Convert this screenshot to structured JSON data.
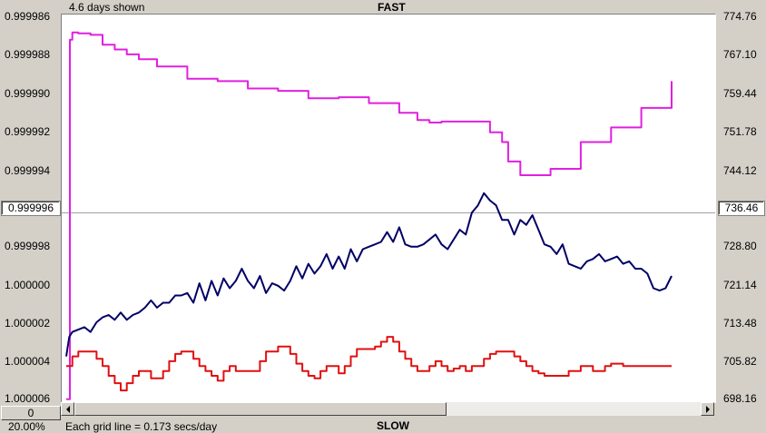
{
  "header": {
    "left_text": "4.6 days shown",
    "center_title": "FAST"
  },
  "footer": {
    "grid_note": "Each grid line = 0.173 secs/day",
    "center_title": "SLOW",
    "zoom": "20.00%",
    "scroll_box": "0"
  },
  "left_axis": {
    "ticks": [
      "0.999986",
      "0.999988",
      "0.999990",
      "0.999992",
      "0.999994",
      "0.999996",
      "0.999998",
      "1.000000",
      "1.000002",
      "1.000004",
      "1.000006"
    ],
    "selected": "0.999996"
  },
  "right_axis": {
    "ticks": [
      "774.76",
      "767.10",
      "759.44",
      "751.78",
      "744.12",
      "736.46",
      "728.80",
      "721.14",
      "713.48",
      "705.82",
      "698.16"
    ],
    "selected": "736.46"
  },
  "colors": {
    "magenta": "#e020e0",
    "navy": "#000066",
    "red": "#e01010",
    "center_line": "#a0a0a0"
  },
  "chart_data": [
    {
      "type": "line",
      "name_axis": "right",
      "ylim": [
        698.16,
        774.76
      ],
      "series": [
        {
          "color": "magenta",
          "x": [
            0,
            0.6,
            1,
            2,
            4,
            6,
            8,
            10,
            12,
            15,
            20,
            25,
            30,
            35,
            40,
            45,
            50,
            55,
            58,
            60,
            62,
            66,
            70,
            72,
            73,
            75,
            80,
            85,
            90,
            95,
            100
          ],
          "values": [
            698.2,
            772.0,
            773.5,
            773.3,
            773.0,
            771.0,
            770.0,
            769.0,
            768.0,
            766.5,
            764.0,
            763.5,
            762.0,
            761.5,
            760.0,
            760.2,
            759.0,
            757.0,
            755.5,
            755.0,
            755.2,
            755.2,
            753.0,
            751.0,
            747.0,
            744.2,
            745.5,
            751.0,
            754.0,
            758.0,
            763.5
          ]
        },
        {
          "color": "navy",
          "x": [
            0,
            0.5,
            1,
            2,
            3,
            4,
            5,
            6,
            7,
            8,
            9,
            10,
            11,
            12,
            13,
            14,
            15,
            16,
            17,
            18,
            19,
            20,
            21,
            22,
            23,
            24,
            25,
            26,
            27,
            28,
            29,
            30,
            31,
            32,
            33,
            34,
            35,
            36,
            37,
            38,
            39,
            40,
            41,
            42,
            43,
            44,
            45,
            46,
            47,
            48,
            49,
            50,
            51,
            52,
            53,
            54,
            55,
            56,
            57,
            58,
            59,
            60,
            61,
            62,
            63,
            64,
            65,
            66,
            67,
            68,
            69,
            70,
            71,
            72,
            73,
            74,
            75,
            76,
            77,
            78,
            79,
            80,
            81,
            82,
            83,
            84,
            85,
            86,
            87,
            88,
            89,
            90,
            91,
            92,
            93,
            94,
            95,
            96,
            97,
            98,
            99,
            100
          ],
          "values": [
            707.0,
            711.0,
            712.0,
            712.5,
            713.0,
            712.0,
            714.0,
            715.0,
            715.5,
            714.5,
            716.0,
            714.5,
            715.5,
            716.0,
            717.0,
            718.5,
            717.0,
            718.0,
            718.0,
            719.5,
            719.5,
            720.0,
            718.0,
            722.0,
            718.5,
            722.5,
            719.5,
            723.0,
            721.0,
            722.5,
            725.0,
            722.5,
            721.0,
            723.5,
            720.0,
            722.0,
            721.5,
            720.5,
            722.5,
            725.5,
            723.0,
            726.0,
            724.0,
            725.5,
            728.0,
            725.0,
            727.5,
            725.0,
            729.0,
            726.5,
            729.0,
            729.5,
            730.0,
            730.5,
            732.5,
            730.5,
            733.5,
            730.0,
            729.5,
            729.5,
            730.0,
            731.0,
            732.0,
            730.0,
            729.0,
            731.0,
            733.0,
            732.0,
            736.5,
            738.0,
            740.5,
            739.0,
            738.0,
            735.0,
            735.0,
            732.0,
            735.0,
            734.0,
            736.0,
            733.0,
            730.0,
            729.5,
            728.0,
            730.0,
            726.0,
            725.5,
            725.0,
            726.5,
            727.0,
            728.0,
            726.5,
            727.0,
            727.5,
            726.0,
            726.5,
            725.0,
            725.0,
            724.0,
            721.0,
            720.5,
            721.0,
            723.5
          ]
        },
        {
          "color": "red",
          "x": [
            0,
            1,
            2,
            3,
            4,
            5,
            6,
            7,
            8,
            9,
            10,
            11,
            12,
            13,
            14,
            15,
            16,
            17,
            18,
            19,
            20,
            21,
            22,
            23,
            24,
            25,
            26,
            27,
            28,
            29,
            30,
            31,
            32,
            33,
            34,
            35,
            36,
            37,
            38,
            39,
            40,
            41,
            42,
            43,
            44,
            45,
            46,
            47,
            48,
            49,
            50,
            51,
            52,
            53,
            54,
            55,
            56,
            57,
            58,
            59,
            60,
            61,
            62,
            63,
            64,
            65,
            66,
            67,
            68,
            69,
            70,
            71,
            72,
            73,
            74,
            75,
            76,
            77,
            78,
            79,
            80,
            81,
            82,
            83,
            84,
            85,
            86,
            87,
            88,
            89,
            90,
            91,
            92,
            93,
            94,
            95,
            96,
            97,
            98,
            99,
            100
          ],
          "values": [
            705.0,
            707.0,
            708.0,
            708.0,
            708.0,
            706.5,
            705.0,
            703.0,
            701.5,
            700.0,
            701.5,
            703.0,
            704.0,
            704.0,
            702.5,
            702.5,
            704.0,
            706.0,
            707.5,
            708.0,
            708.0,
            706.5,
            705.0,
            704.0,
            703.0,
            702.0,
            704.0,
            705.0,
            704.0,
            704.0,
            704.0,
            704.0,
            706.0,
            708.0,
            708.0,
            709.0,
            709.0,
            707.5,
            705.5,
            704.0,
            703.0,
            702.5,
            704.0,
            705.0,
            705.0,
            703.5,
            705.0,
            707.0,
            708.5,
            708.5,
            708.5,
            709.0,
            710.0,
            711.0,
            710.0,
            708.0,
            706.5,
            705.0,
            704.0,
            704.0,
            705.0,
            706.0,
            705.0,
            704.0,
            704.5,
            705.0,
            704.0,
            705.0,
            705.0,
            706.5,
            707.5,
            708.0,
            708.0,
            708.0,
            707.0,
            706.0,
            705.0,
            704.0,
            703.5,
            703.0,
            703.0,
            703.0,
            703.0,
            704.0,
            704.0,
            705.0,
            705.0,
            704.0,
            704.0,
            705.0,
            705.5,
            705.5,
            705.0,
            705.0,
            705.0,
            705.0,
            705.0,
            705.0,
            705.0,
            705.0,
            705.0
          ]
        }
      ]
    }
  ]
}
